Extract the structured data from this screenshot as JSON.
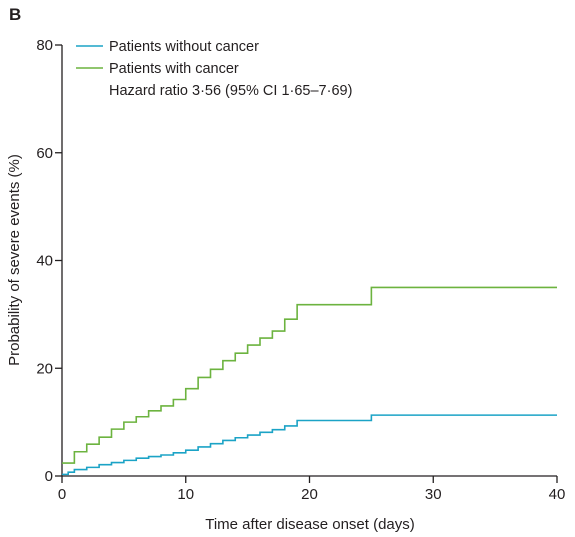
{
  "panel_label": "B",
  "chart_data": {
    "type": "line",
    "step": true,
    "title": "",
    "xlabel": "Time after disease onset (days)",
    "ylabel": "Probability of severe events (%)",
    "xlim": [
      0,
      40
    ],
    "ylim": [
      0,
      80
    ],
    "xticks": [
      0,
      10,
      20,
      30,
      40
    ],
    "yticks": [
      0,
      20,
      40,
      60,
      80
    ],
    "grid": false,
    "legend_position": "top-left",
    "annotation": "Hazard ratio 3·56 (95% CI 1·65–7·69)",
    "series": [
      {
        "name": "Patients without cancer",
        "color": "#1ba3c6",
        "x": [
          0,
          0.5,
          1,
          2,
          3,
          4,
          5,
          6,
          7,
          8,
          9,
          10,
          11,
          12,
          13,
          14,
          15,
          16,
          17,
          18,
          19,
          25,
          40
        ],
        "y": [
          0.3,
          0.7,
          1.2,
          1.6,
          2.1,
          2.5,
          2.9,
          3.3,
          3.6,
          3.9,
          4.3,
          4.8,
          5.4,
          6.0,
          6.6,
          7.1,
          7.6,
          8.1,
          8.6,
          9.3,
          10.3,
          11.3,
          11.3
        ]
      },
      {
        "name": "Patients with cancer",
        "color": "#6cb33f",
        "x": [
          0,
          1,
          2,
          3,
          4,
          5,
          6,
          7,
          8,
          9,
          10,
          11,
          12,
          13,
          14,
          15,
          16,
          17,
          18,
          19,
          25,
          40
        ],
        "y": [
          2.4,
          4.5,
          5.9,
          7.2,
          8.7,
          10.0,
          11.0,
          12.1,
          13.0,
          14.2,
          16.2,
          18.3,
          19.8,
          21.4,
          22.8,
          24.3,
          25.6,
          26.9,
          29.1,
          31.8,
          35.0,
          35.0
        ]
      }
    ]
  }
}
